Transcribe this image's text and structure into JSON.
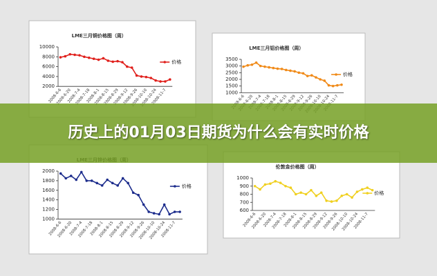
{
  "title": "历史上的01月03日期货为什么会有实时价格",
  "chart_data": [
    {
      "type": "line",
      "title": "LME三月铜价格图（周）",
      "categories": [
        "2008-6-6",
        null,
        "2008-6-20",
        null,
        "2008-7-4",
        null,
        "2008-7-18",
        null,
        "2008-8-1",
        null,
        "2008-8-15",
        null,
        "2008-8-29",
        null,
        "2008-9-12",
        null,
        "2008-9-26",
        null,
        "2008-10-10",
        null,
        "2008-10-24",
        null,
        "2008-11-7",
        null
      ],
      "series": [
        {
          "name": "价格",
          "color": "#e0201c",
          "values": [
            7900,
            8100,
            8500,
            8400,
            8300,
            8000,
            7800,
            7600,
            7400,
            7700,
            7200,
            7000,
            7100,
            6900,
            6000,
            5800,
            4200,
            4000,
            3900,
            3700,
            3200,
            3000,
            3000,
            3400
          ]
        }
      ],
      "ylim": [
        2000,
        10000
      ],
      "yticks": [
        2000,
        4000,
        6000,
        8000,
        10000
      ]
    },
    {
      "type": "line",
      "title": "LME三月铝价格图（周）",
      "categories": [
        "2008-6-6",
        null,
        "2008-6-20",
        null,
        "2008-7-4",
        null,
        "2008-7-18",
        null,
        "2008-8-1",
        null,
        "2008-8-15",
        null,
        "2008-8-29",
        null,
        "2008-9-12",
        null,
        "2008-9-26",
        null,
        "2008-10-10",
        null,
        "2008-10-24",
        null,
        "2008-11-7",
        null
      ],
      "series": [
        {
          "name": "价格",
          "color": "#f08a18",
          "values": [
            2950,
            3050,
            3100,
            3250,
            3000,
            2950,
            2900,
            2850,
            2800,
            2780,
            2700,
            2650,
            2600,
            2500,
            2450,
            2250,
            2300,
            2150,
            2000,
            1900,
            1550,
            1500,
            1550,
            1600
          ]
        }
      ],
      "ylim": [
        1000,
        3500
      ],
      "yticks": [
        1000,
        1500,
        2000,
        2500,
        3000,
        3500
      ]
    },
    {
      "type": "line",
      "title": "LME三月锌价格图（周）",
      "categories": [
        "2008-6-6",
        null,
        "2008-6-20",
        null,
        "2008-7-4",
        null,
        "2008-7-18",
        null,
        "2008-8-1",
        null,
        "2008-8-15",
        null,
        "2008-8-29",
        null,
        "2008-9-12",
        null,
        "2008-9-26",
        null,
        "2008-10-10",
        null,
        "2008-10-24",
        null,
        "2008-11-7",
        null
      ],
      "series": [
        {
          "name": "价格",
          "color": "#1c2c8c",
          "values": [
            1950,
            1850,
            1900,
            1820,
            1980,
            1800,
            1800,
            1750,
            1700,
            1820,
            1750,
            1700,
            1850,
            1750,
            1550,
            1500,
            1300,
            1150,
            1120,
            1100,
            1300,
            1100,
            1150,
            1150
          ]
        }
      ],
      "ylim": [
        1000,
        2000
      ],
      "yticks": [
        1000,
        1200,
        1400,
        1600,
        1800,
        2000
      ]
    },
    {
      "type": "line",
      "title": "伦敦金价格图（周）",
      "categories": [
        "2008-6-6",
        null,
        "2008-6-20",
        null,
        "2008-7-4",
        null,
        "2008-7-18",
        null,
        "2008-8-1",
        null,
        "2008-8-15",
        null,
        "2008-8-29",
        null,
        "2008-9-12",
        null,
        "2008-9-26",
        null,
        "2008-10-10",
        null,
        "2008-10-24",
        null,
        "2008-11-7",
        null
      ],
      "series": [
        {
          "name": "价格",
          "color": "#f0d020",
          "values": [
            900,
            860,
            920,
            930,
            960,
            940,
            900,
            880,
            800,
            820,
            800,
            850,
            780,
            820,
            720,
            710,
            720,
            780,
            800,
            760,
            830,
            860,
            880,
            850
          ]
        }
      ],
      "ylim": [
        600,
        1000
      ],
      "yticks": [
        600,
        700,
        800,
        900,
        1000
      ]
    }
  ]
}
